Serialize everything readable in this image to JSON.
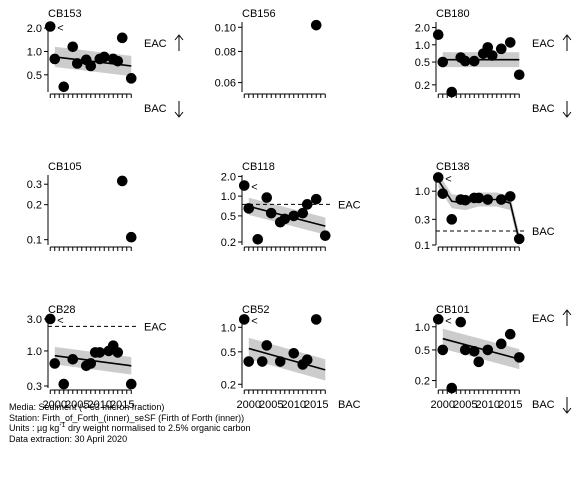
{
  "chart_data": [
    {
      "type": "scatter",
      "title": "CB153",
      "yscale": "log",
      "ylim": [
        0.3,
        2.4
      ],
      "yticks": [
        "2.0",
        "1.0",
        "0.5"
      ],
      "points": [
        [
          1999,
          2.1
        ],
        [
          2000,
          0.8
        ],
        [
          2002,
          0.35
        ],
        [
          2004,
          1.15
        ],
        [
          2005,
          0.7
        ],
        [
          2007,
          0.78
        ],
        [
          2008,
          0.65
        ],
        [
          2010,
          0.8
        ],
        [
          2011,
          0.85
        ],
        [
          2013,
          0.8
        ],
        [
          2014,
          0.75
        ],
        [
          2015,
          1.5
        ],
        [
          2017,
          0.45
        ]
      ],
      "trend": [
        [
          2000,
          0.85
        ],
        [
          2017,
          0.65
        ]
      ],
      "refs": [
        {
          "label": "EAC",
          "arrow": "up"
        },
        {
          "label": "BAC",
          "arrow": "down"
        }
      ],
      "marker": "<"
    },
    {
      "type": "scatter",
      "title": "CB156",
      "yscale": "log",
      "ylim": [
        0.055,
        0.105
      ],
      "yticks": [
        "0.10",
        "0.08",
        "0.06"
      ],
      "points": [
        [
          2015,
          0.102
        ]
      ],
      "refs": []
    },
    {
      "type": "scatter",
      "title": "CB180",
      "yscale": "log",
      "ylim": [
        0.15,
        2.5
      ],
      "yticks": [
        "2.0",
        "1.0",
        "0.5",
        "0.2"
      ],
      "points": [
        [
          1999,
          1.5
        ],
        [
          2000,
          0.5
        ],
        [
          2002,
          0.15
        ],
        [
          2004,
          0.6
        ],
        [
          2005,
          0.52
        ],
        [
          2007,
          0.52
        ],
        [
          2009,
          0.7
        ],
        [
          2010,
          0.9
        ],
        [
          2011,
          0.65
        ],
        [
          2013,
          0.85
        ],
        [
          2015,
          1.1
        ],
        [
          2017,
          0.3
        ]
      ],
      "trend": [
        [
          2000,
          0.55
        ],
        [
          2017,
          0.55
        ]
      ],
      "refs": [
        {
          "label": "EAC",
          "arrow": "up"
        },
        {
          "label": "BAC",
          "arrow": "down"
        }
      ]
    },
    {
      "type": "scatter",
      "title": "CB105",
      "yscale": "log",
      "ylim": [
        0.09,
        0.36
      ],
      "yticks": [
        "0.3",
        "0.2",
        "0.1"
      ],
      "points": [
        [
          2015,
          0.32
        ],
        [
          2017,
          0.105
        ]
      ],
      "refs": []
    },
    {
      "type": "scatter",
      "title": "CB118",
      "yscale": "log",
      "ylim": [
        0.18,
        2.1
      ],
      "yticks": [
        "2.0",
        "1.0",
        "0.5",
        "0.2"
      ],
      "points": [
        [
          1999,
          1.45
        ],
        [
          2000,
          0.65
        ],
        [
          2002,
          0.22
        ],
        [
          2004,
          0.95
        ],
        [
          2005,
          0.55
        ],
        [
          2007,
          0.4
        ],
        [
          2008,
          0.45
        ],
        [
          2010,
          0.5
        ],
        [
          2012,
          0.55
        ],
        [
          2013,
          0.75
        ],
        [
          2015,
          0.9
        ],
        [
          2017,
          0.25
        ]
      ],
      "trend": [
        [
          2000,
          0.7
        ],
        [
          2017,
          0.35
        ]
      ],
      "refs": [
        {
          "label": "EAC",
          "arrow": "none"
        }
      ],
      "marker": "<"
    },
    {
      "type": "scatter",
      "title": "CB138",
      "yscale": "log",
      "ylim": [
        0.1,
        2.0
      ],
      "yticks": [
        "1.0",
        "0.3",
        "0.1"
      ],
      "points": [
        [
          1999,
          1.8
        ],
        [
          2000,
          0.9
        ],
        [
          2002,
          0.3
        ],
        [
          2004,
          0.7
        ],
        [
          2005,
          0.68
        ],
        [
          2007,
          0.75
        ],
        [
          2008,
          0.75
        ],
        [
          2010,
          0.7
        ],
        [
          2013,
          0.7
        ],
        [
          2015,
          0.8
        ],
        [
          2017,
          0.13
        ]
      ],
      "trend": [
        [
          1999,
          1.6
        ],
        [
          2002,
          0.65
        ],
        [
          2005,
          0.6
        ],
        [
          2008,
          0.7
        ],
        [
          2012,
          0.7
        ],
        [
          2015,
          0.6
        ],
        [
          2017,
          0.12
        ]
      ],
      "refs": [
        {
          "label": "BAC",
          "arrow": "none"
        }
      ],
      "marker": "<"
    },
    {
      "type": "scatter",
      "title": "CB28",
      "yscale": "log",
      "ylim": [
        0.28,
        3.1
      ],
      "yticks": [
        "3.0",
        "1.0",
        "0.3"
      ],
      "points": [
        [
          1999,
          3.0
        ],
        [
          2000,
          0.65
        ],
        [
          2002,
          0.32
        ],
        [
          2004,
          0.75
        ],
        [
          2007,
          0.6
        ],
        [
          2008,
          0.65
        ],
        [
          2009,
          0.95
        ],
        [
          2010,
          0.95
        ],
        [
          2012,
          1.0
        ],
        [
          2013,
          1.2
        ],
        [
          2014,
          0.95
        ],
        [
          2017,
          0.32
        ]
      ],
      "trend": [
        [
          2000,
          0.85
        ],
        [
          2017,
          0.6
        ]
      ],
      "refs": [
        {
          "label": "EAC",
          "arrow": "none"
        }
      ],
      "marker": "<"
    },
    {
      "type": "scatter",
      "title": "CB52",
      "yscale": "log",
      "ylim": [
        0.18,
        1.3
      ],
      "yticks": [
        "1.0",
        "0.5",
        "0.2"
      ],
      "points": [
        [
          1999,
          1.25
        ],
        [
          2000,
          0.38
        ],
        [
          2003,
          0.38
        ],
        [
          2004,
          0.6
        ],
        [
          2007,
          0.38
        ],
        [
          2010,
          0.48
        ],
        [
          2012,
          0.35
        ],
        [
          2013,
          0.4
        ],
        [
          2015,
          1.25
        ]
      ],
      "trend": [
        [
          2000,
          0.55
        ],
        [
          2017,
          0.3
        ]
      ],
      "refs": [
        {
          "label": "BAC",
          "arrow": "none"
        }
      ],
      "marker": "<"
    },
    {
      "type": "scatter",
      "title": "CB101",
      "yscale": "log",
      "ylim": [
        0.16,
        1.3
      ],
      "yticks": [
        "1.0",
        "0.5",
        "0.2"
      ],
      "points": [
        [
          1999,
          1.25
        ],
        [
          2000,
          0.5
        ],
        [
          2002,
          0.16
        ],
        [
          2004,
          1.15
        ],
        [
          2005,
          0.5
        ],
        [
          2007,
          0.48
        ],
        [
          2008,
          0.35
        ],
        [
          2010,
          0.5
        ],
        [
          2013,
          0.6
        ],
        [
          2015,
          0.8
        ],
        [
          2017,
          0.4
        ]
      ],
      "trend": [
        [
          2000,
          0.7
        ],
        [
          2017,
          0.38
        ]
      ],
      "refs": [
        {
          "label": "EAC",
          "arrow": "up"
        },
        {
          "label": "BAC",
          "arrow": "down"
        }
      ],
      "marker": "<"
    }
  ],
  "xticks": [
    "2000",
    "2005",
    "2010",
    "2015"
  ],
  "footer": {
    "media": "Media: Sediment (< 63 micron fraction)",
    "station": "Station: Firth_of_Forth_(inner)_seSF (Firth of Forth (inner))",
    "units_pre": "Units : µg kg",
    "units_sup": "-1",
    "units_post": " dry weight normalised to 2.5% organic carbon",
    "extraction": "Data extraction: 30 April 2020"
  }
}
